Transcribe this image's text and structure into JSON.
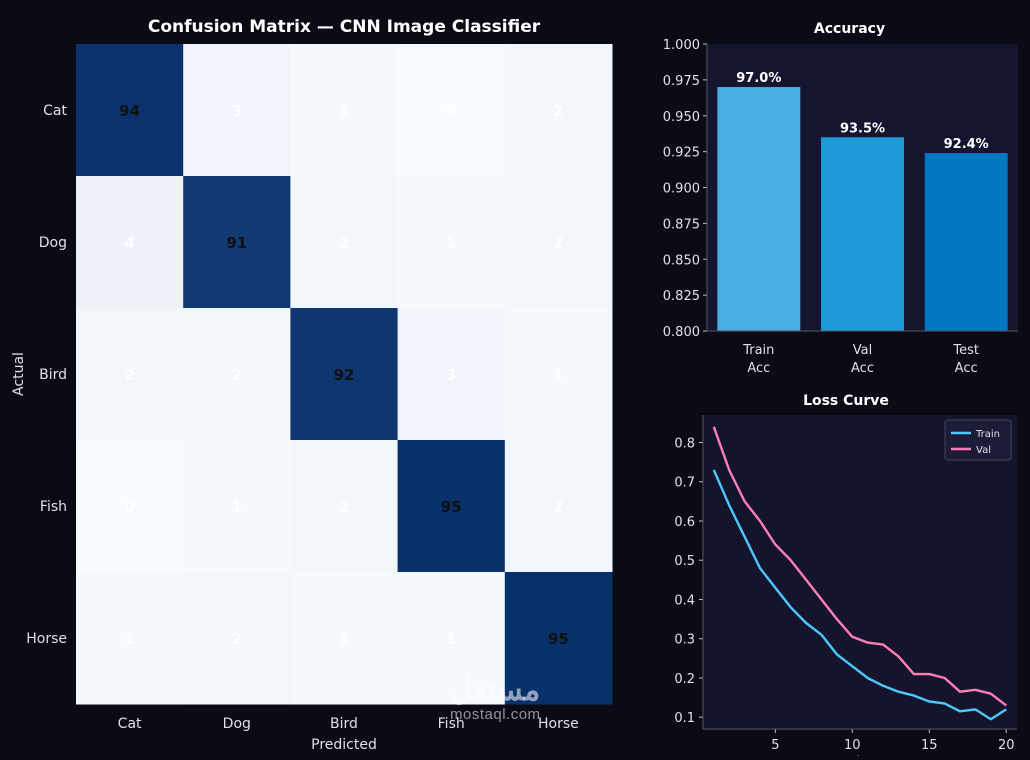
{
  "chart_data": [
    {
      "type": "heatmap",
      "title": "Confusion Matrix — CNN Image Classifier",
      "xlabel": "Predicted",
      "ylabel": "Actual",
      "x_categories": [
        "Cat",
        "Dog",
        "Bird",
        "Fish",
        "Horse"
      ],
      "y_categories": [
        "Cat",
        "Dog",
        "Bird",
        "Fish",
        "Horse"
      ],
      "values": [
        [
          94,
          3,
          1,
          0,
          2
        ],
        [
          4,
          91,
          2,
          1,
          2
        ],
        [
          2,
          2,
          92,
          3,
          1
        ],
        [
          0,
          1,
          2,
          95,
          2
        ],
        [
          1,
          2,
          1,
          1,
          95
        ]
      ],
      "colormap": "Blues"
    },
    {
      "type": "bar",
      "title": "Accuracy",
      "categories": [
        "Train\nAcc",
        "Val\nAcc",
        "Test\nAcc"
      ],
      "values": [
        0.97,
        0.935,
        0.924
      ],
      "value_labels": [
        "97.0%",
        "93.5%",
        "92.4%"
      ],
      "ylim": [
        0.8,
        1.0
      ],
      "yticks": [
        "0.800",
        "0.825",
        "0.850",
        "0.875",
        "0.900",
        "0.925",
        "0.950",
        "0.975",
        "1.000"
      ],
      "colors": [
        "#4aaee0",
        "#1e9ad8",
        "#0077c0"
      ]
    },
    {
      "type": "line",
      "title": "Loss Curve",
      "xlabel": "Epoch",
      "x": [
        1,
        2,
        3,
        4,
        5,
        6,
        7,
        8,
        9,
        10,
        11,
        12,
        13,
        14,
        15,
        16,
        17,
        18,
        19,
        20
      ],
      "series": [
        {
          "name": "Train",
          "color": "#4dc8ff",
          "values": [
            0.73,
            0.64,
            0.56,
            0.48,
            0.43,
            0.38,
            0.34,
            0.31,
            0.26,
            0.23,
            0.2,
            0.18,
            0.165,
            0.155,
            0.14,
            0.135,
            0.115,
            0.12,
            0.095,
            0.12
          ]
        },
        {
          "name": "Val",
          "color": "#ff7eb6",
          "values": [
            0.84,
            0.73,
            0.65,
            0.6,
            0.54,
            0.5,
            0.45,
            0.4,
            0.35,
            0.305,
            0.29,
            0.285,
            0.255,
            0.21,
            0.21,
            0.2,
            0.165,
            0.17,
            0.16,
            0.13
          ]
        }
      ],
      "xticks": [
        5,
        10,
        15,
        20
      ],
      "yticks": [
        0.1,
        0.2,
        0.3,
        0.4,
        0.5,
        0.6,
        0.7,
        0.8
      ],
      "ylim": [
        0.07,
        0.87
      ],
      "xlim": [
        0.3,
        20.7
      ],
      "legend": "top-right"
    }
  ],
  "watermark": {
    "arabic": "مستقل",
    "latin": "mostaql.com"
  }
}
